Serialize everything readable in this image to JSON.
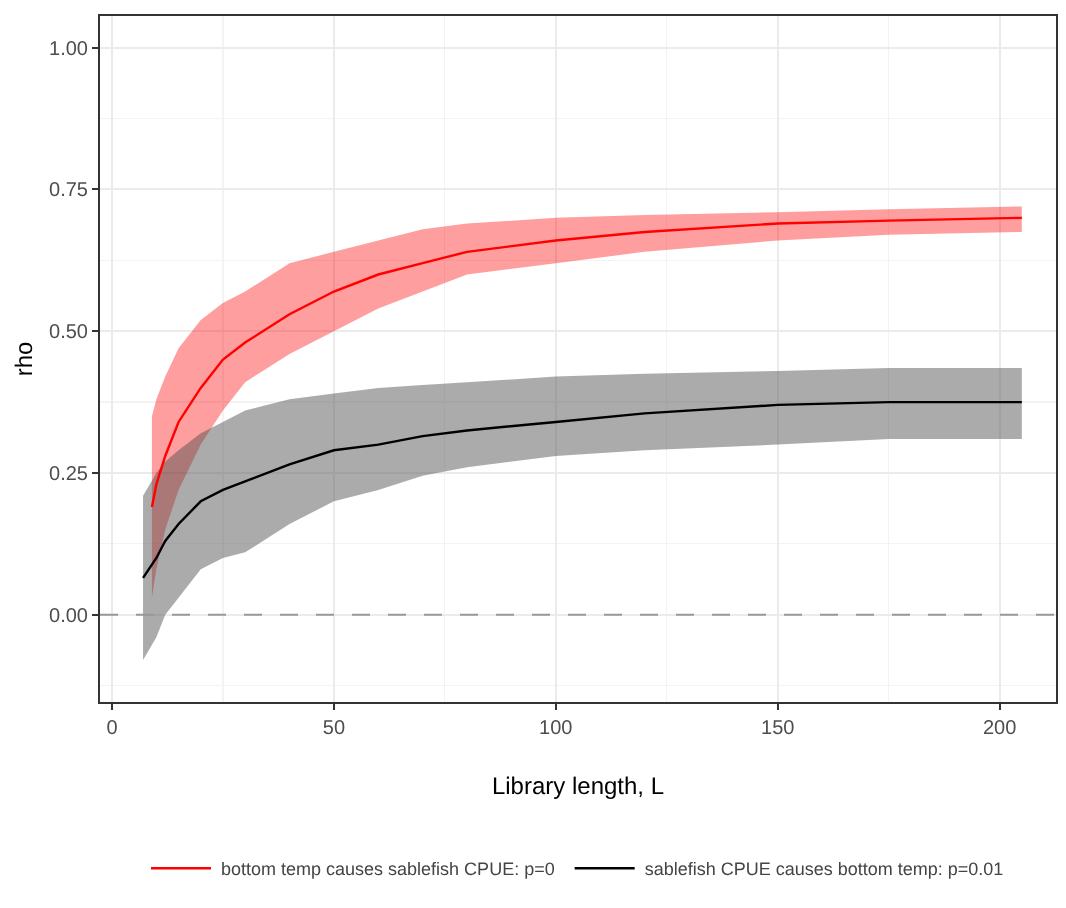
{
  "chart_data": {
    "type": "line",
    "xlabel": "Library length, L",
    "ylabel": "rho",
    "xlim": [
      -2.7,
      212.7
    ],
    "xticks": [
      0,
      50,
      100,
      150,
      200
    ],
    "ylim": [
      -0.154,
      1.056
    ],
    "yticks": [
      {
        "value": 0,
        "label": "0.00"
      },
      {
        "value": 0.25,
        "label": "0.25"
      },
      {
        "value": 0.5,
        "label": "0.50"
      },
      {
        "value": 0.75,
        "label": "0.75"
      },
      {
        "value": 1,
        "label": "1.00"
      }
    ],
    "grid": true,
    "legend": "bottom",
    "line_style": "solid",
    "marker": "none",
    "ref_lines": [
      {
        "axis": "y",
        "value": 0,
        "color": "#999999",
        "line_style": "dashed"
      }
    ],
    "series": [
      {
        "name": "bottom temp causes sablefish CPUE: p=0",
        "color": "#ff0000",
        "x": [
          9,
          10,
          12,
          15,
          20,
          25,
          30,
          40,
          50,
          60,
          70,
          80,
          100,
          120,
          150,
          175,
          205
        ],
        "values": [
          0.19,
          0.23,
          0.28,
          0.34,
          0.4,
          0.45,
          0.48,
          0.53,
          0.57,
          0.6,
          0.62,
          0.64,
          0.66,
          0.675,
          0.69,
          0.695,
          0.7
        ],
        "lower": [
          0.03,
          0.08,
          0.15,
          0.22,
          0.3,
          0.36,
          0.41,
          0.46,
          0.5,
          0.54,
          0.57,
          0.6,
          0.62,
          0.64,
          0.66,
          0.67,
          0.675
        ],
        "upper": [
          0.35,
          0.38,
          0.42,
          0.47,
          0.52,
          0.55,
          0.57,
          0.62,
          0.64,
          0.66,
          0.68,
          0.69,
          0.7,
          0.705,
          0.71,
          0.715,
          0.72
        ]
      },
      {
        "name": "sablefish CPUE causes bottom temp: p=0.01",
        "color": "#000000",
        "x": [
          7,
          10,
          12,
          15,
          20,
          25,
          30,
          40,
          50,
          60,
          70,
          80,
          100,
          120,
          150,
          175,
          205
        ],
        "values": [
          0.065,
          0.1,
          0.13,
          0.16,
          0.2,
          0.22,
          0.235,
          0.265,
          0.29,
          0.3,
          0.315,
          0.325,
          0.34,
          0.355,
          0.37,
          0.375,
          0.375
        ],
        "lower": [
          -0.08,
          -0.04,
          0.0,
          0.03,
          0.08,
          0.1,
          0.11,
          0.16,
          0.2,
          0.22,
          0.245,
          0.26,
          0.28,
          0.29,
          0.3,
          0.31,
          0.31
        ],
        "upper": [
          0.21,
          0.25,
          0.27,
          0.29,
          0.32,
          0.34,
          0.36,
          0.38,
          0.39,
          0.4,
          0.405,
          0.41,
          0.42,
          0.425,
          0.43,
          0.435,
          0.435
        ]
      }
    ]
  }
}
